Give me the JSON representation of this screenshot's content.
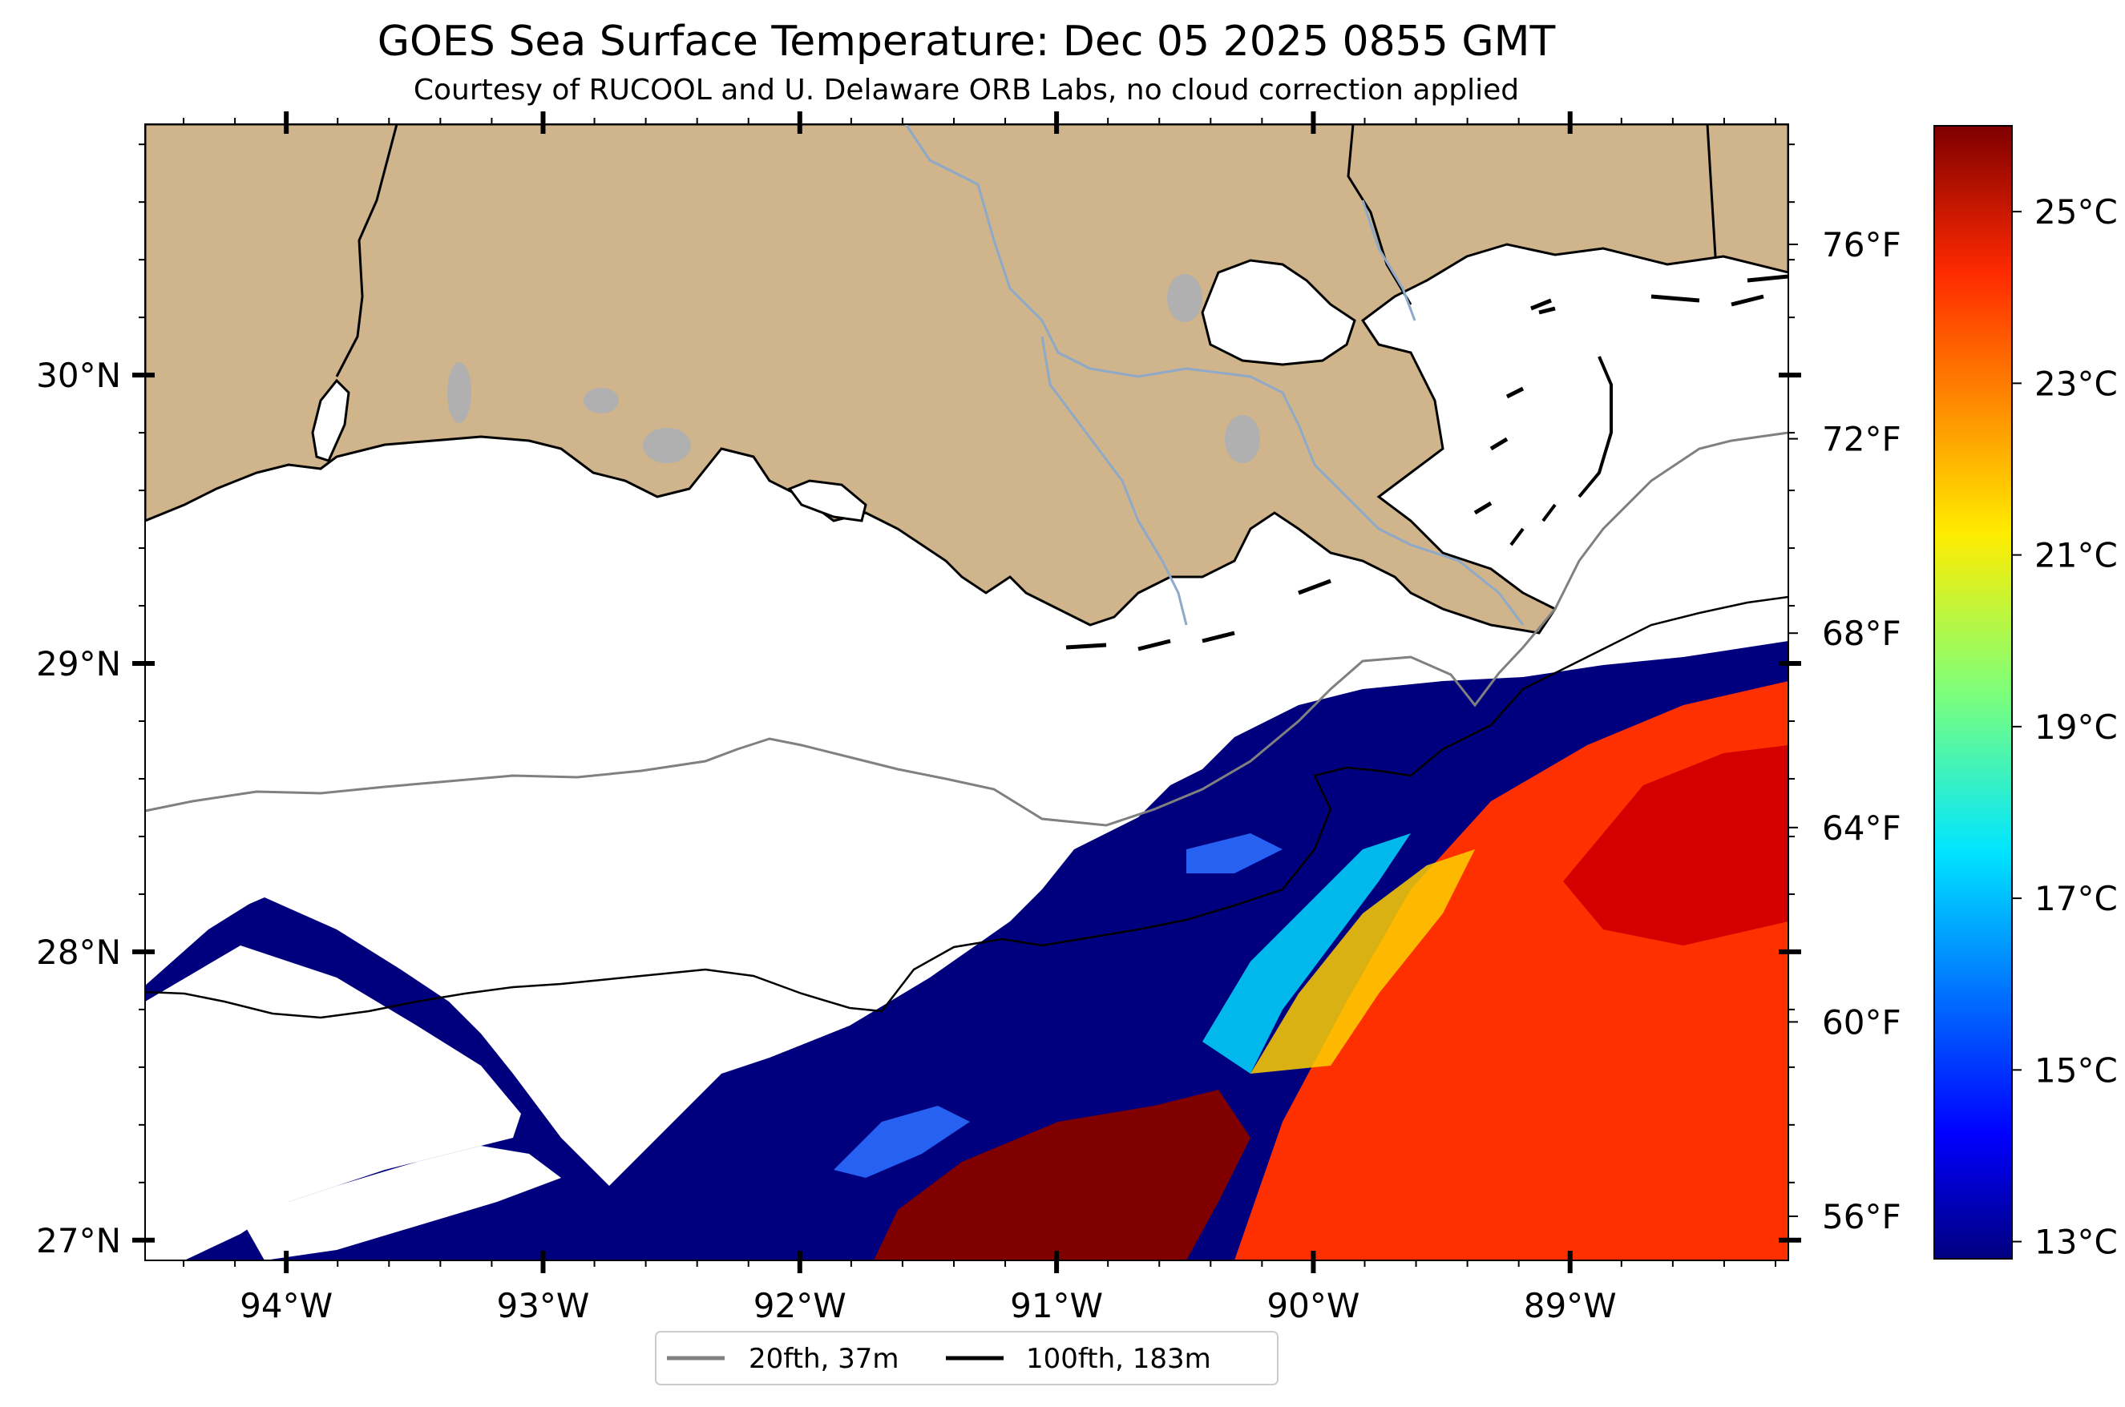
{
  "title": "GOES Sea Surface Temperature: Dec 05 2025 0855 GMT",
  "subtitle": "Courtesy of RUCOOL and U. Delaware ORB Labs, no cloud correction applied",
  "map": {
    "lon_range": [
      -94.55,
      -88.15
    ],
    "lat_range": [
      26.93,
      30.87
    ],
    "lon_ticks": [
      {
        "value": -94,
        "label": "94°W"
      },
      {
        "value": -93,
        "label": "93°W"
      },
      {
        "value": -92,
        "label": "92°W"
      },
      {
        "value": -91,
        "label": "91°W"
      },
      {
        "value": -90,
        "label": "90°W"
      },
      {
        "value": -89,
        "label": "89°W"
      }
    ],
    "lat_ticks": [
      {
        "value": 27,
        "label": "27°N"
      },
      {
        "value": 28,
        "label": "28°N"
      },
      {
        "value": 29,
        "label": "29°N"
      },
      {
        "value": 30,
        "label": "30°N"
      }
    ],
    "right_temp_ticks": [
      {
        "label": "56°F"
      },
      {
        "label": "60°F"
      },
      {
        "label": "64°F"
      },
      {
        "label": "68°F"
      },
      {
        "label": "72°F"
      },
      {
        "label": "76°F"
      }
    ],
    "land_color": "#cfb48c",
    "land_outline_color": "#000000",
    "river_color": "#8fa9c9",
    "lake_color": "#b0b0b0"
  },
  "legend": {
    "items": [
      {
        "label": "20fth, 37m",
        "color": "#808080"
      },
      {
        "label": "100fth, 183m",
        "color": "#000000"
      }
    ]
  },
  "colorbar": {
    "colormap": "jet",
    "range_c": [
      12.8,
      26.0
    ],
    "ticks": [
      {
        "value": 13,
        "label": "13°C"
      },
      {
        "value": 15,
        "label": "15°C"
      },
      {
        "value": 17,
        "label": "17°C"
      },
      {
        "value": 19,
        "label": "19°C"
      },
      {
        "value": 21,
        "label": "21°C"
      },
      {
        "value": 23,
        "label": "23°C"
      },
      {
        "value": 25,
        "label": "25°C"
      }
    ]
  }
}
